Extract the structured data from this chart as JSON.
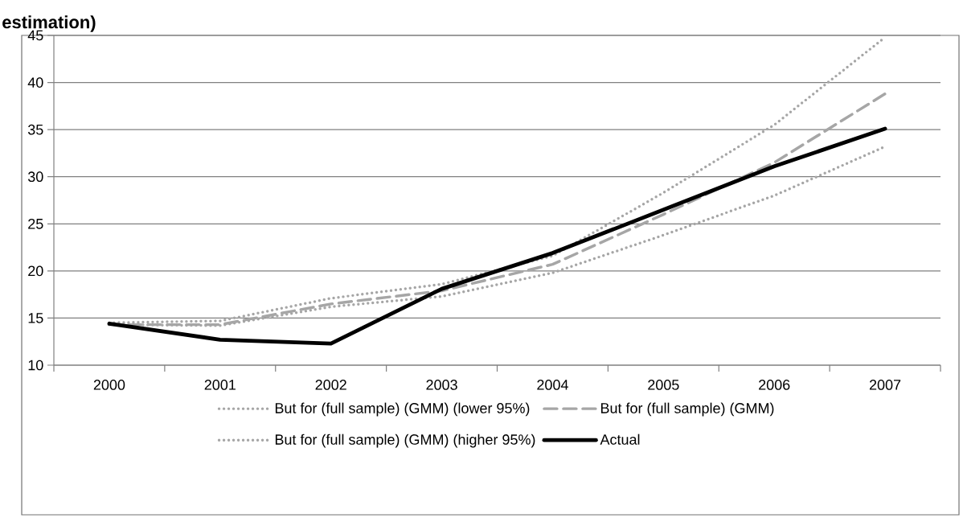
{
  "chart_data": {
    "type": "line",
    "title": "estimation)",
    "categories": [
      "2000",
      "2001",
      "2002",
      "2003",
      "2004",
      "2005",
      "2006",
      "2007"
    ],
    "ylim": [
      10,
      45
    ],
    "yticks": [
      10,
      15,
      20,
      25,
      30,
      35,
      40,
      45
    ],
    "grid": "y",
    "legend": "bottom",
    "marker": "none",
    "series": [
      {
        "name": "But for (full sample) (GMM) (lower 95%)",
        "color": "#a6a6a6",
        "line_style": "dotted",
        "values": [
          14.3,
          14.2,
          16.2,
          17.3,
          19.8,
          23.8,
          28.0,
          33.2
        ]
      },
      {
        "name": "But for (full sample) (GMM)",
        "color": "#a6a6a6",
        "line_style": "dashed",
        "values": [
          14.3,
          14.3,
          16.5,
          17.9,
          20.7,
          26.0,
          31.5,
          38.8
        ]
      },
      {
        "name": "But for (full sample) (GMM) (higher 95%)",
        "color": "#a6a6a6",
        "line_style": "dotted",
        "values": [
          14.5,
          14.7,
          17.1,
          18.6,
          21.6,
          28.3,
          35.5,
          44.8
        ]
      },
      {
        "name": "Actual",
        "color": "#000000",
        "line_style": "solid",
        "values": [
          14.4,
          12.7,
          12.3,
          18.1,
          21.9,
          26.5,
          31.1,
          35.1
        ]
      }
    ]
  }
}
